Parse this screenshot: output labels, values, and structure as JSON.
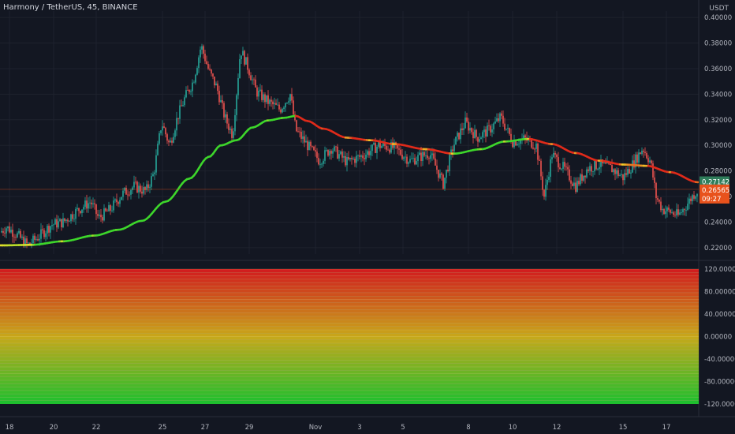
{
  "header": {
    "title": "Harmony / TetherUS, 45, BINANCE",
    "currency": "USDT"
  },
  "colors": {
    "background": "#131722",
    "grid": "#1e222d",
    "candle_up": "#26a69a",
    "candle_down": "#ef5350",
    "ma_green": "#3dd62b",
    "ma_yellow": "#f0e02a",
    "ma_red": "#e02a1a",
    "tag_green": "#2f7d5b",
    "tag_orange": "#e8521c",
    "axis_text": "#b2b5be"
  },
  "chart_data": [
    {
      "type": "candlestick",
      "title": "Harmony / TetherUS, 45, BINANCE",
      "ylabel": "USDT",
      "ylim": [
        0.215,
        0.405
      ],
      "y_ticks": [
        "0.40000",
        "0.38000",
        "0.36000",
        "0.34000",
        "0.32000",
        "0.30000",
        "0.28000",
        "0.26000",
        "0.24000",
        "0.22000"
      ],
      "x_ticks": [
        "18",
        "20",
        "22",
        "25",
        "27",
        "29",
        "Nov",
        "3",
        "5",
        "8",
        "10",
        "12",
        "15",
        "17"
      ],
      "price_path": [
        [
          0,
          0.232
        ],
        [
          8,
          0.236
        ],
        [
          20,
          0.231
        ],
        [
          35,
          0.222
        ],
        [
          50,
          0.229
        ],
        [
          65,
          0.238
        ],
        [
          80,
          0.24
        ],
        [
          100,
          0.25
        ],
        [
          115,
          0.256
        ],
        [
          125,
          0.243
        ],
        [
          140,
          0.25
        ],
        [
          155,
          0.262
        ],
        [
          170,
          0.268
        ],
        [
          185,
          0.264
        ],
        [
          195,
          0.278
        ],
        [
          205,
          0.318
        ],
        [
          215,
          0.3
        ],
        [
          225,
          0.322
        ],
        [
          235,
          0.338
        ],
        [
          245,
          0.35
        ],
        [
          255,
          0.378
        ],
        [
          265,
          0.358
        ],
        [
          275,
          0.345
        ],
        [
          285,
          0.322
        ],
        [
          295,
          0.308
        ],
        [
          305,
          0.375
        ],
        [
          315,
          0.36
        ],
        [
          325,
          0.342
        ],
        [
          340,
          0.334
        ],
        [
          355,
          0.328
        ],
        [
          368,
          0.34
        ],
        [
          375,
          0.312
        ],
        [
          390,
          0.3
        ],
        [
          405,
          0.288
        ],
        [
          420,
          0.298
        ],
        [
          440,
          0.287
        ],
        [
          460,
          0.292
        ],
        [
          480,
          0.3
        ],
        [
          500,
          0.298
        ],
        [
          520,
          0.288
        ],
        [
          545,
          0.294
        ],
        [
          562,
          0.27
        ],
        [
          575,
          0.3
        ],
        [
          590,
          0.318
        ],
        [
          605,
          0.306
        ],
        [
          620,
          0.312
        ],
        [
          635,
          0.322
        ],
        [
          650,
          0.303
        ],
        [
          665,
          0.305
        ],
        [
          680,
          0.3
        ],
        [
          690,
          0.26
        ],
        [
          700,
          0.293
        ],
        [
          715,
          0.282
        ],
        [
          730,
          0.268
        ],
        [
          745,
          0.282
        ],
        [
          760,
          0.285
        ],
        [
          775,
          0.282
        ],
        [
          790,
          0.275
        ],
        [
          800,
          0.283
        ],
        [
          815,
          0.298
        ],
        [
          825,
          0.287
        ],
        [
          832,
          0.26
        ],
        [
          840,
          0.25
        ],
        [
          850,
          0.248
        ],
        [
          860,
          0.245
        ],
        [
          870,
          0.253
        ],
        [
          880,
          0.262
        ],
        [
          885,
          0.265
        ]
      ],
      "moving_average": {
        "name": "",
        "points": [
          [
            0,
            0.2218
          ],
          [
            40,
            0.2222
          ],
          [
            80,
            0.225
          ],
          [
            120,
            0.2295
          ],
          [
            150,
            0.234
          ],
          [
            180,
            0.241
          ],
          [
            210,
            0.256
          ],
          [
            240,
            0.274
          ],
          [
            265,
            0.291
          ],
          [
            280,
            0.3
          ],
          [
            300,
            0.304
          ],
          [
            320,
            0.314
          ],
          [
            340,
            0.3195
          ],
          [
            360,
            0.3215
          ],
          [
            375,
            0.323
          ],
          [
            390,
            0.319
          ],
          [
            410,
            0.313
          ],
          [
            440,
            0.306
          ],
          [
            470,
            0.304
          ],
          [
            500,
            0.301
          ],
          [
            540,
            0.297
          ],
          [
            575,
            0.2935
          ],
          [
            610,
            0.297
          ],
          [
            640,
            0.303
          ],
          [
            670,
            0.305
          ],
          [
            700,
            0.301
          ],
          [
            730,
            0.294
          ],
          [
            760,
            0.288
          ],
          [
            790,
            0.285
          ],
          [
            820,
            0.284
          ],
          [
            850,
            0.279
          ],
          [
            885,
            0.2712
          ]
        ]
      },
      "current_price": 0.26565,
      "ma_value": 0.27142,
      "labels": {
        "ma_tag": "0.27142",
        "price_tag": "0.26565",
        "countdown": "09:27"
      }
    },
    {
      "type": "heatmap",
      "title": "",
      "ylim": [
        -120,
        120
      ],
      "y_ticks": [
        "120.00000",
        "80.00000",
        "40.00000",
        "0.00000",
        "-40.00000",
        "-80.00000",
        "-120.00000"
      ],
      "bands": 40,
      "gradient": [
        "#d11e1e",
        "#c8a81a",
        "#1fbf2e"
      ]
    }
  ]
}
